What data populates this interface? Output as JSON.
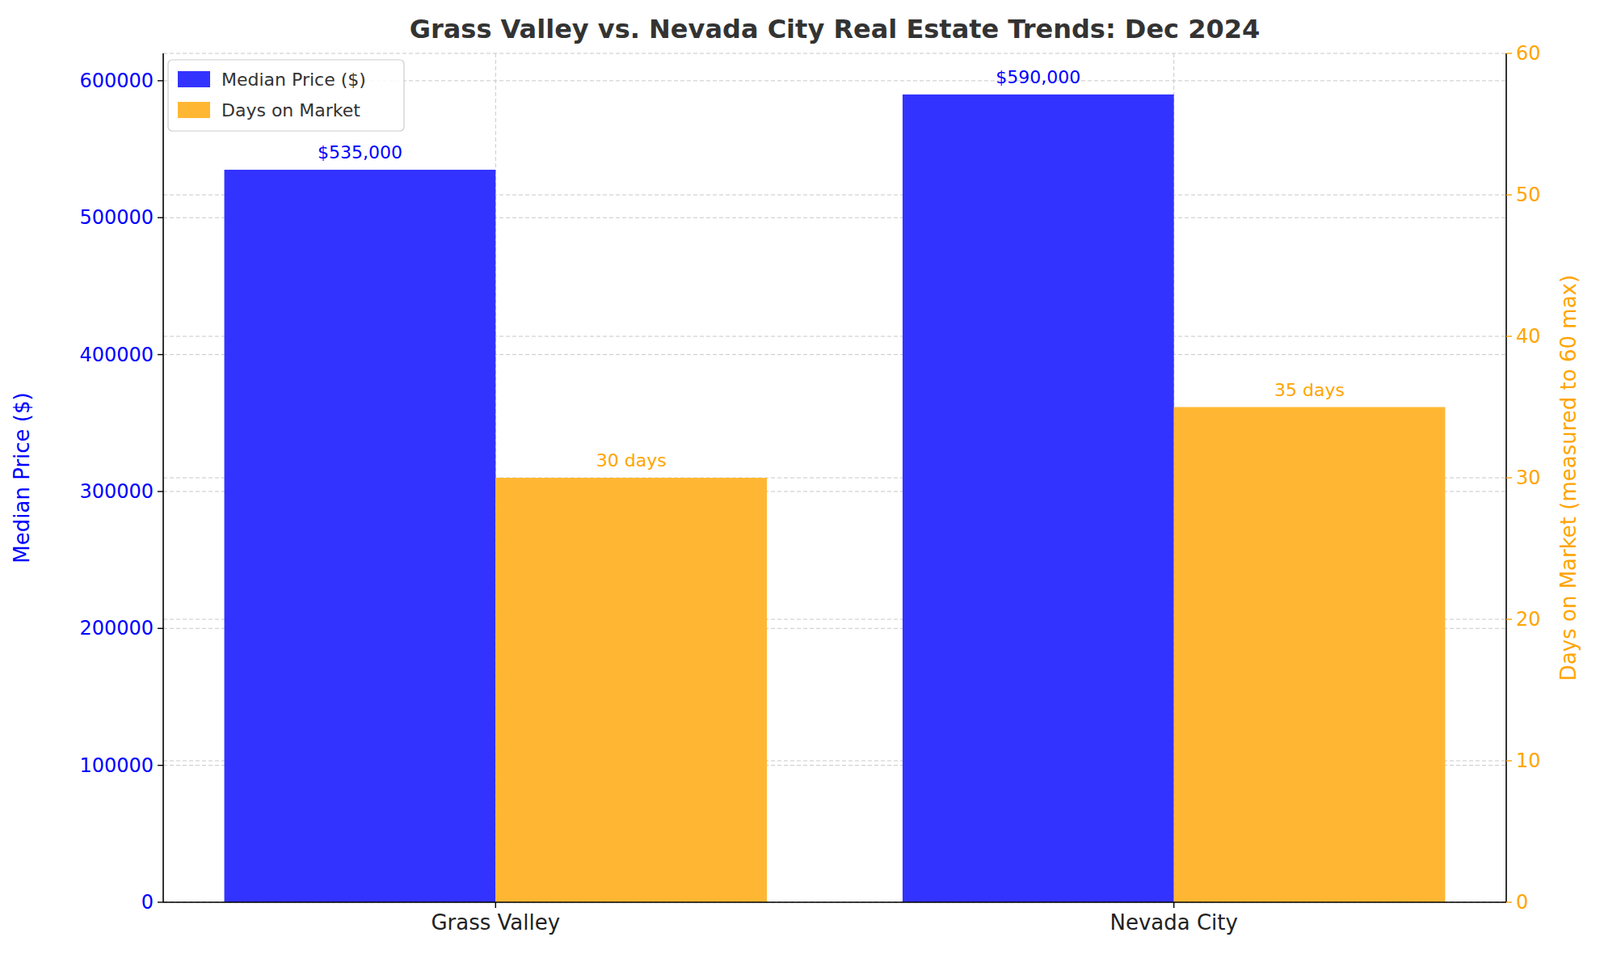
{
  "chart_data": {
    "type": "bar",
    "title": "Grass Valley vs. Nevada City Real Estate Trends: Dec 2024",
    "ylabel": "Median Price ($)",
    "y2label": "Days on Market (measured to 60 max)",
    "categories": [
      "Grass Valley",
      "Nevada City"
    ],
    "series": [
      {
        "name": "Median Price ($)",
        "color": "#3333ff",
        "values": [
          535000,
          590000
        ],
        "value_labels": [
          "$535,000",
          "$590,000"
        ]
      },
      {
        "name": "Days on Market",
        "color": "#ffb733",
        "values": [
          30,
          35
        ],
        "value_labels": [
          "30 days",
          "35 days"
        ],
        "axis": "y2"
      }
    ],
    "ylim": [
      0,
      620000
    ],
    "yticks": [
      0,
      100000,
      200000,
      300000,
      400000,
      500000,
      600000
    ],
    "y2lim": [
      0,
      60
    ],
    "y2ticks": [
      0,
      10,
      20,
      30,
      40,
      50,
      60
    ],
    "grid": true,
    "legend": "upper left",
    "data_labels": true
  }
}
